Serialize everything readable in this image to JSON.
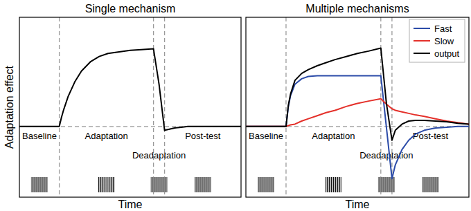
{
  "chart_data": [
    {
      "type": "line",
      "title": "Single mechanism",
      "y_label": "Adaptation effect",
      "x_label": "Time",
      "phases": [
        "Baseline",
        "Adaptation",
        "Deadaptation",
        "Post-test"
      ],
      "x": [
        0,
        18,
        19,
        20,
        22,
        25,
        28,
        32,
        36,
        40,
        45,
        50,
        55,
        60.5,
        63,
        65.5,
        67,
        70,
        73,
        76,
        80,
        85,
        90,
        95,
        100
      ],
      "series": [
        {
          "color": "#000000",
          "values": [
            0,
            0,
            0.12,
            0.22,
            0.39,
            0.58,
            0.72,
            0.84,
            0.91,
            0.95,
            0.97,
            0.99,
            1.0,
            1.01,
            0.55,
            -0.05,
            -0.04,
            -0.02,
            -0.01,
            0,
            0,
            0,
            0,
            0,
            0
          ]
        }
      ],
      "xlim": [
        0,
        100
      ],
      "ylim": [
        -0.92,
        1.42
      ],
      "xticks": [
        18,
        60.5,
        65.5
      ],
      "yticks": [
        0
      ],
      "grid": true,
      "tick_labels": false
    },
    {
      "type": "line",
      "title": "Multiple mechanisms",
      "x_label": "Time",
      "phases": [
        "Baseline",
        "Adaptation",
        "Deadaptation",
        "Post-test"
      ],
      "x": [
        0,
        18,
        19,
        20,
        22,
        25,
        28,
        32,
        36,
        40,
        45,
        50,
        55,
        60.5,
        63,
        65.5,
        67,
        70,
        73,
        76,
        80,
        85,
        90,
        95,
        100
      ],
      "series": [
        {
          "name": "Fast",
          "color": "#2b4ba8",
          "values": [
            0,
            0,
            0.25,
            0.4,
            0.55,
            0.62,
            0.65,
            0.66,
            0.66,
            0.66,
            0.66,
            0.66,
            0.66,
            0.66,
            -0.01,
            -0.68,
            -0.5,
            -0.3,
            -0.18,
            -0.1,
            -0.05,
            -0.02,
            -0.01,
            0,
            0
          ]
        },
        {
          "name": "Slow",
          "color": "#e4302a",
          "values": [
            0,
            0,
            0.01,
            0.02,
            0.03,
            0.07,
            0.1,
            0.14,
            0.18,
            0.21,
            0.26,
            0.3,
            0.33,
            0.36,
            0.29,
            0.23,
            0.21,
            0.19,
            0.17,
            0.15,
            0.13,
            0.1,
            0.07,
            0.05,
            0.03
          ]
        },
        {
          "name": "output",
          "color": "#000000",
          "values": [
            0,
            0,
            0.27,
            0.42,
            0.6,
            0.69,
            0.74,
            0.79,
            0.83,
            0.87,
            0.91,
            0.95,
            0.98,
            1.02,
            0.3,
            -0.18,
            -0.05,
            0.03,
            0.07,
            0.08,
            0.08,
            0.07,
            0.06,
            0.04,
            0.03
          ]
        }
      ],
      "xlim": [
        0,
        100
      ],
      "ylim": [
        -0.92,
        1.42
      ],
      "xticks": [
        18,
        60.5,
        65.5
      ],
      "yticks": [
        0
      ],
      "grid": true,
      "tick_labels": false,
      "legend": "upper right"
    }
  ]
}
